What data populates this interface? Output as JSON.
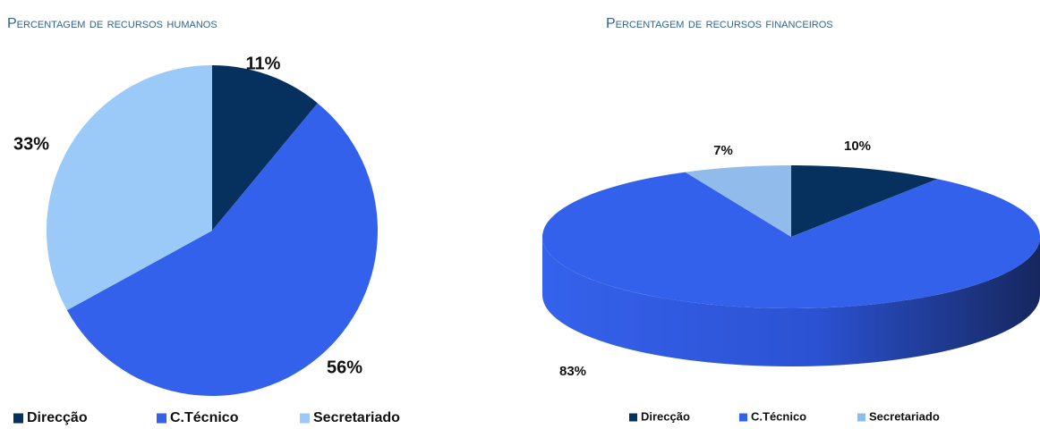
{
  "chart_data": [
    {
      "type": "pie",
      "title": "Percentagem de recursos humanos",
      "categories": [
        "Direcção",
        "C.Técnico",
        "Secretariado"
      ],
      "values": [
        11,
        56,
        33
      ],
      "value_labels": [
        "11%",
        "56%",
        "33%"
      ],
      "colors": [
        "#06305e",
        "#3461ec",
        "#9ccaf8"
      ],
      "legend": "bottom",
      "3d": false
    },
    {
      "type": "pie",
      "title": "Percentagem de recursos financeiros",
      "categories": [
        "Direcção",
        "C.Técnico",
        "Secretariado"
      ],
      "values": [
        10,
        83,
        7
      ],
      "value_labels": [
        "10%",
        "83%",
        "7%"
      ],
      "colors": [
        "#06305e",
        "#3461ec",
        "#90bbea"
      ],
      "legend": "bottom",
      "3d": true
    }
  ]
}
